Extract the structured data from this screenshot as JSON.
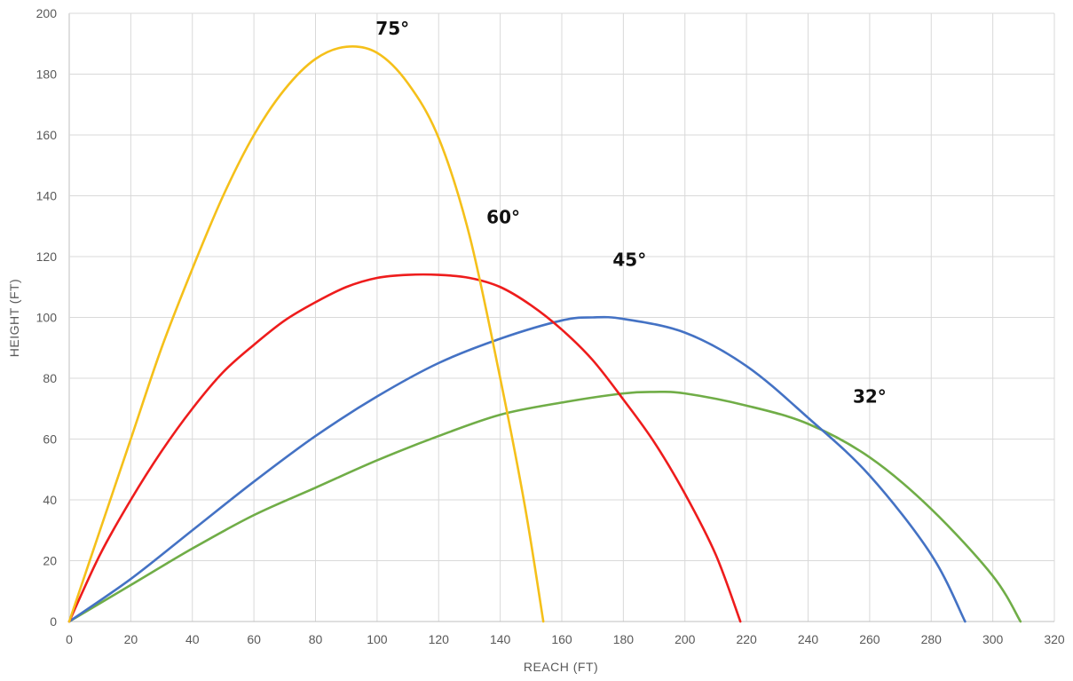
{
  "chart_data": {
    "type": "line",
    "title": "",
    "xlabel": "REACH (FT)",
    "ylabel": "HEIGHT (FT)",
    "xlim": [
      0,
      320
    ],
    "ylim": [
      0,
      200
    ],
    "xticks": [
      0,
      20,
      40,
      60,
      80,
      100,
      120,
      140,
      160,
      180,
      200,
      220,
      240,
      260,
      280,
      300,
      320
    ],
    "yticks": [
      0,
      20,
      40,
      60,
      80,
      100,
      120,
      140,
      160,
      180,
      200
    ],
    "grid": true,
    "legend": "none",
    "series": [
      {
        "name": "75°",
        "color": "#f5c01a",
        "points": [
          [
            0,
            0
          ],
          [
            10,
            30
          ],
          [
            20,
            60
          ],
          [
            30,
            90
          ],
          [
            40,
            116
          ],
          [
            50,
            140
          ],
          [
            60,
            160
          ],
          [
            70,
            175
          ],
          [
            80,
            185
          ],
          [
            90,
            189
          ],
          [
            100,
            187
          ],
          [
            110,
            177
          ],
          [
            120,
            159
          ],
          [
            130,
            127
          ],
          [
            140,
            80
          ],
          [
            148,
            38
          ],
          [
            154,
            0
          ]
        ]
      },
      {
        "name": "60°",
        "color": "#ee1c1c",
        "points": [
          [
            0,
            0
          ],
          [
            10,
            22
          ],
          [
            20,
            40
          ],
          [
            30,
            56
          ],
          [
            40,
            70
          ],
          [
            50,
            82
          ],
          [
            60,
            91
          ],
          [
            70,
            99
          ],
          [
            80,
            105
          ],
          [
            90,
            110
          ],
          [
            100,
            113
          ],
          [
            110,
            114
          ],
          [
            120,
            114
          ],
          [
            130,
            113
          ],
          [
            140,
            110
          ],
          [
            150,
            104
          ],
          [
            160,
            96
          ],
          [
            170,
            86
          ],
          [
            180,
            73
          ],
          [
            190,
            59
          ],
          [
            200,
            42
          ],
          [
            210,
            22
          ],
          [
            218,
            0
          ]
        ]
      },
      {
        "name": "45°",
        "color": "#4472c4",
        "points": [
          [
            0,
            0
          ],
          [
            20,
            14
          ],
          [
            40,
            30
          ],
          [
            60,
            46
          ],
          [
            80,
            61
          ],
          [
            100,
            74
          ],
          [
            120,
            85
          ],
          [
            140,
            93
          ],
          [
            160,
            99
          ],
          [
            170,
            100
          ],
          [
            180,
            99.5
          ],
          [
            200,
            95
          ],
          [
            220,
            84
          ],
          [
            240,
            67
          ],
          [
            260,
            48
          ],
          [
            280,
            22
          ],
          [
            291,
            0
          ]
        ]
      },
      {
        "name": "32°",
        "color": "#70ad47",
        "points": [
          [
            0,
            0
          ],
          [
            20,
            12
          ],
          [
            40,
            24
          ],
          [
            60,
            35
          ],
          [
            80,
            44
          ],
          [
            100,
            53
          ],
          [
            120,
            61
          ],
          [
            140,
            68
          ],
          [
            160,
            72
          ],
          [
            180,
            75
          ],
          [
            190,
            75.5
          ],
          [
            200,
            75
          ],
          [
            220,
            71
          ],
          [
            240,
            65
          ],
          [
            260,
            54
          ],
          [
            280,
            37
          ],
          [
            300,
            15
          ],
          [
            309,
            0
          ]
        ]
      }
    ],
    "annotations": [
      {
        "text": "75°",
        "x": 105,
        "y": 193
      },
      {
        "text": "60°",
        "x": 141,
        "y": 131
      },
      {
        "text": "45°",
        "x": 182,
        "y": 117
      },
      {
        "text": "32°",
        "x": 260,
        "y": 72
      }
    ]
  }
}
